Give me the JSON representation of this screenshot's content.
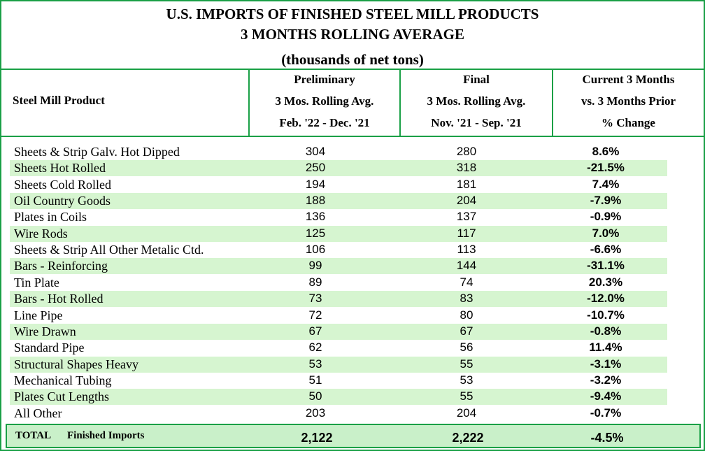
{
  "header": {
    "title_lines": [
      "U.S. IMPORTS OF FINISHED STEEL MILL PRODUCTS",
      "3 MONTHS ROLLING AVERAGE",
      "(thousands of net tons)"
    ]
  },
  "table": {
    "columns": [
      [
        "Steel Mill Product"
      ],
      [
        "Preliminary",
        "3 Mos. Rolling Avg.",
        "Feb. '22 - Dec. '21"
      ],
      [
        "Final",
        "3 Mos. Rolling Avg.",
        "Nov.  '21 - Sep. '21"
      ],
      [
        "Current 3 Months",
        "vs. 3 Months Prior",
        "% Change"
      ]
    ],
    "rows": [
      [
        "Sheets & Strip Galv. Hot Dipped",
        "304",
        "280",
        "8.6%"
      ],
      [
        "Sheets Hot Rolled",
        "250",
        "318",
        "-21.5%"
      ],
      [
        "Sheets Cold Rolled",
        "194",
        "181",
        "7.4%"
      ],
      [
        "Oil Country Goods",
        "188",
        "204",
        "-7.9%"
      ],
      [
        "Plates in Coils",
        "136",
        "137",
        "-0.9%"
      ],
      [
        "Wire Rods",
        "125",
        "117",
        "7.0%"
      ],
      [
        "Sheets & Strip All Other Metalic Ctd.",
        "106",
        "113",
        "-6.6%"
      ],
      [
        "Bars - Reinforcing",
        "99",
        "144",
        "-31.1%"
      ],
      [
        "Tin Plate",
        "89",
        "74",
        "20.3%"
      ],
      [
        "Bars - Hot Rolled",
        "73",
        "83",
        "-12.0%"
      ],
      [
        "Line Pipe",
        "72",
        "80",
        "-10.7%"
      ],
      [
        "Wire Drawn",
        "67",
        "67",
        "-0.8%"
      ],
      [
        "Standard Pipe",
        "62",
        "56",
        "11.4%"
      ],
      [
        "Structural Shapes Heavy",
        "53",
        "55",
        "-3.1%"
      ],
      [
        "Mechanical Tubing",
        "51",
        "53",
        "-3.2%"
      ],
      [
        "Plates Cut Lengths",
        "50",
        "55",
        "-9.4%"
      ],
      [
        "All Other",
        "203",
        "204",
        "-0.7%"
      ]
    ],
    "total": [
      "TOTAL",
      "Finished Imports",
      "2,122",
      "2,222",
      "-4.5%"
    ]
  }
}
